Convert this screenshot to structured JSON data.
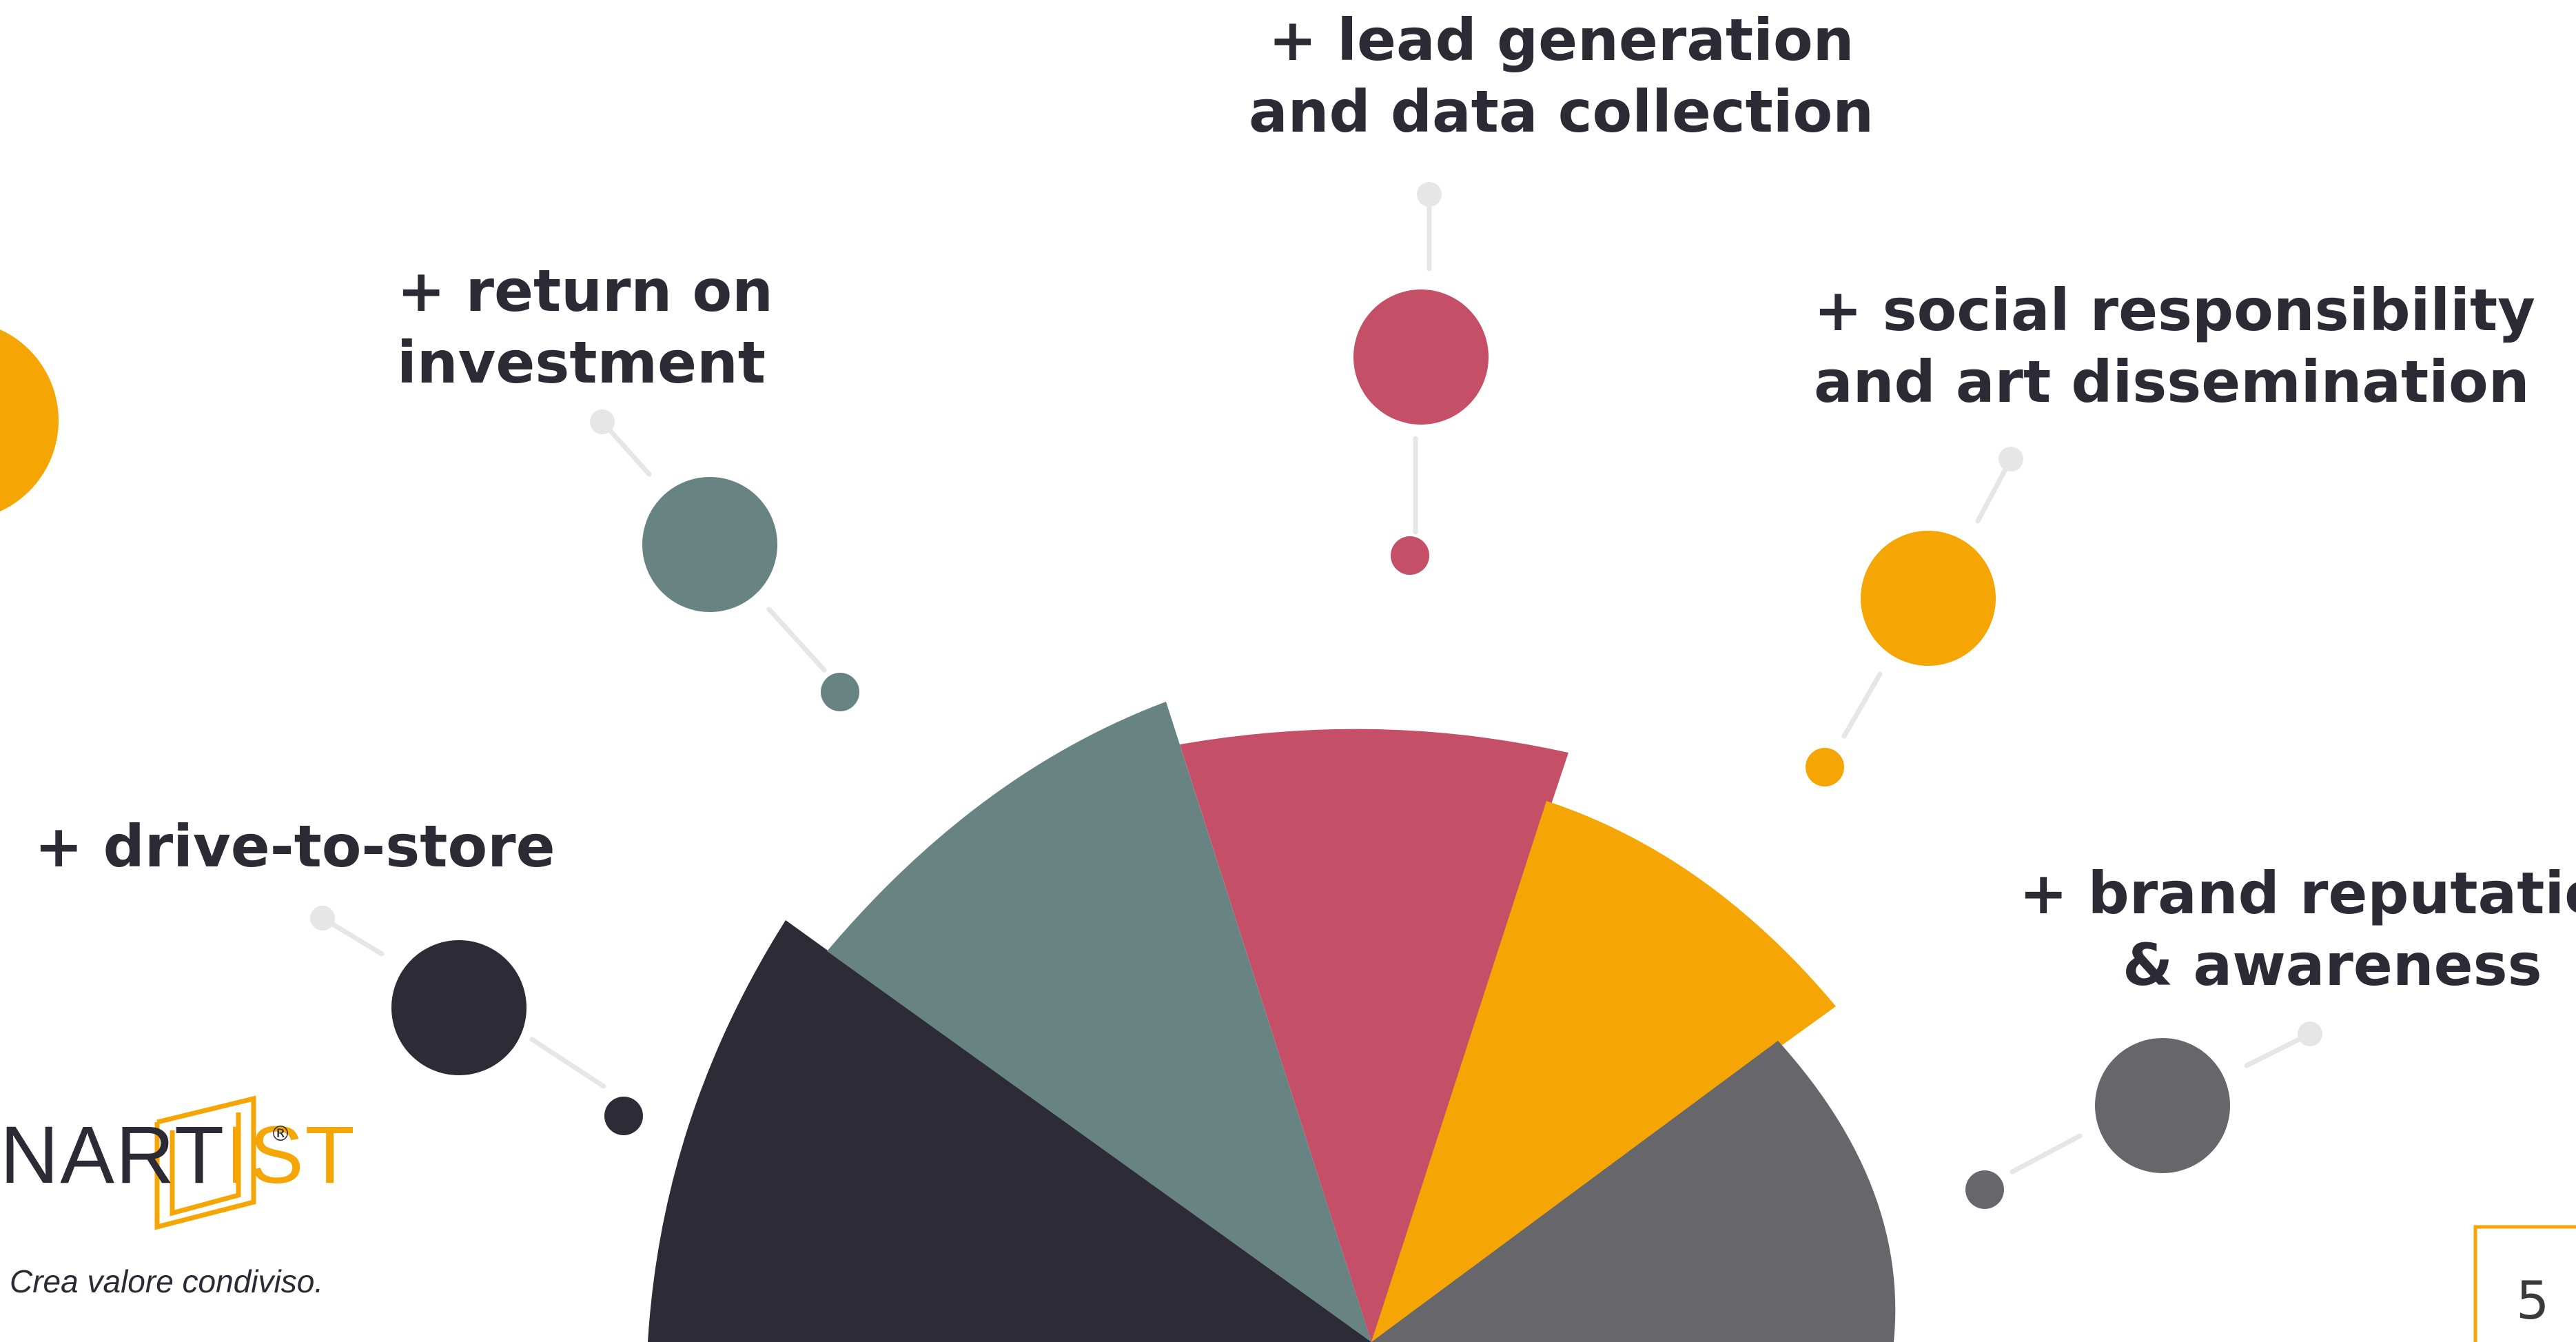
{
  "labels": {
    "lead_generation": [
      "+ lead generation",
      "and data collection"
    ],
    "return_on_investment": [
      "+ return on",
      "investment"
    ],
    "social_responsibility": [
      "+ social responsibility",
      "and art dissemination"
    ],
    "drive_to_store": [
      "+ drive-to-store"
    ],
    "brand_reputation": [
      "+ brand reputation",
      "& awareness"
    ]
  },
  "logo": {
    "part1": "NART",
    "part2": "IST",
    "registered": "®",
    "tagline": "Crea valore condiviso."
  },
  "page_number": "5",
  "colors": {
    "dark": "#2c2b36",
    "teal": "#678482",
    "red": "#c64f68",
    "orange": "#f5a604",
    "gray": "#67666b",
    "connector": "#e6e6e6",
    "text": "#2b2a35"
  },
  "icons": [
    "nartist-logo",
    "registered-mark",
    "page-frame"
  ]
}
